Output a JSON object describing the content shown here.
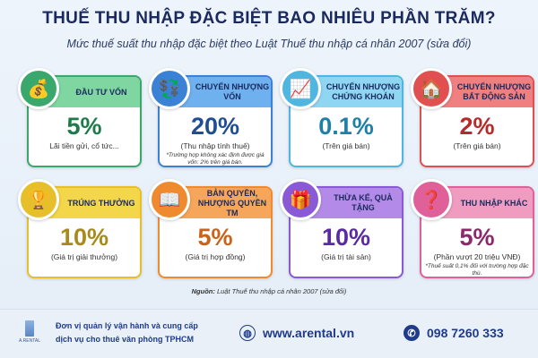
{
  "title": "THUẾ THU NHẬP ĐẶC BIỆT BAO NHIÊU PHẦN TRĂM?",
  "subtitle": "Mức thuế suất thu nhập đặc biệt theo Luật Thuế thu nhập cá nhân 2007 (sửa đổi)",
  "cards": [
    {
      "label": "ĐẦU TƯ VỐN",
      "value": "5%",
      "desc": "Lãi tiền gửi, cổ tức...",
      "note": "",
      "icon": "money-bag-icon",
      "color": "#3aa76d",
      "head": "#7fd6a0",
      "valcolor": "#1f7a4a"
    },
    {
      "label": "CHUYỂN NHƯỢNG VỐN",
      "value": "20%",
      "desc": "(Thu nhập tính thuế)",
      "note": "*Trường hợp không xác định được giá vốn: 2% trên giá bán.",
      "icon": "money-transfer-icon",
      "color": "#3b82d6",
      "head": "#6fb0ee",
      "valcolor": "#1f4e96"
    },
    {
      "label": "CHUYỂN NHƯỢNG CHỨNG KHOÁN",
      "value": "0.1%",
      "desc": "(Trên giá bán)",
      "note": "",
      "icon": "stock-chart-icon",
      "color": "#4fb6e0",
      "head": "#8fd6f2",
      "valcolor": "#1f7fa8"
    },
    {
      "label": "CHUYỂN NHƯỢNG BẤT ĐỘNG SẢN",
      "value": "2%",
      "desc": "(Trên giá bán)",
      "note": "",
      "icon": "real-estate-icon",
      "color": "#e05050",
      "head": "#f08080",
      "valcolor": "#b52a2a"
    },
    {
      "label": "TRÚNG THƯỞNG",
      "value": "10%",
      "desc": "(Giá trị giải thưởng)",
      "note": "",
      "icon": "trophy-icon",
      "color": "#e6bf2a",
      "head": "#f4d64a",
      "valcolor": "#a88a1a"
    },
    {
      "label": "BẢN QUYỀN, NHƯỢNG QUYỀN TM",
      "value": "5%",
      "desc": "(Giá trị hợp đồng)",
      "note": "",
      "icon": "book-idea-icon",
      "color": "#ef8a2e",
      "head": "#f6a65a",
      "valcolor": "#c9621a"
    },
    {
      "label": "THỪA KẾ, QUÀ TẶNG",
      "value": "10%",
      "desc": "(Giá trị tài sản)",
      "note": "",
      "icon": "gift-icon",
      "color": "#8a5ad6",
      "head": "#b48ae8",
      "valcolor": "#5a2aa6"
    },
    {
      "label": "THU NHẬP KHÁC",
      "value": "5%",
      "desc": "(Phần vượt 20 triệu VNĐ)",
      "note": "*Thuế suất 0,1% đối với trường hợp đặc thù.",
      "icon": "question-coins-icon",
      "color": "#e0609a",
      "head": "#f09cc0",
      "valcolor": "#8a2a6a"
    }
  ],
  "source_label": "Nguồn:",
  "source_text": " Luật Thuế thu nhập cá nhân 2007 (sửa đổi)",
  "footer": {
    "logo": "A.RENTAL",
    "line1": "Đơn vị quản lý vận hành và cung cấp",
    "line2": "dịch vụ cho thuê văn phòng TPHCM",
    "website": "www.arental.vn",
    "phone": "098 7260 333"
  }
}
